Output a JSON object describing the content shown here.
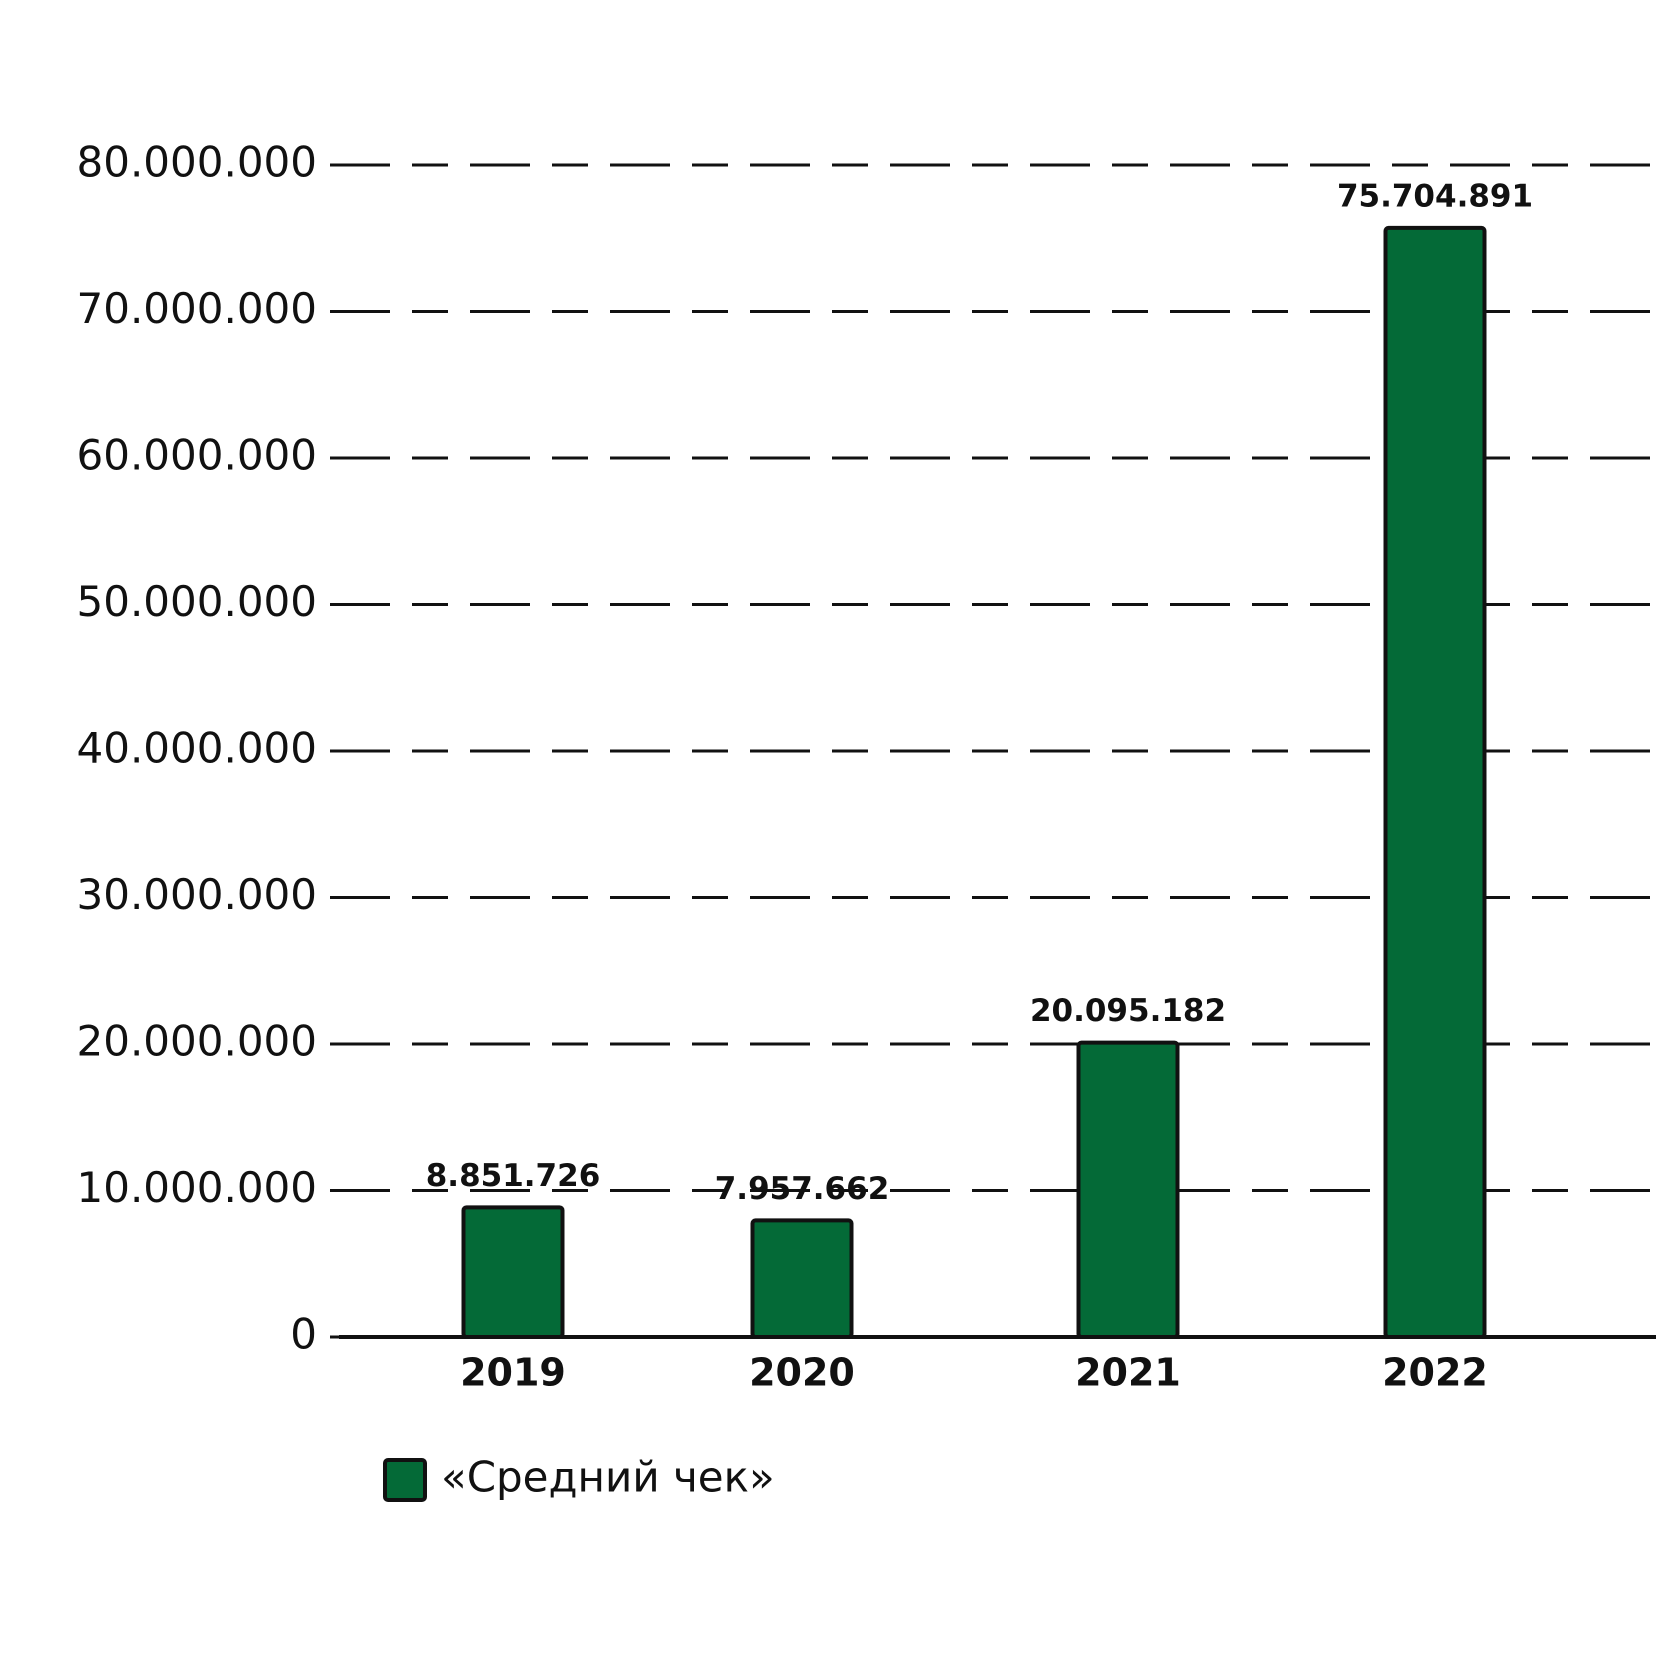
{
  "chart_data": {
    "type": "bar",
    "categories": [
      "2019",
      "2020",
      "2021",
      "2022"
    ],
    "series": [
      {
        "name": "«Средний чек»",
        "color": "#046a37",
        "values": [
          8851726,
          7957662,
          20095182,
          75704891
        ],
        "value_labels": [
          "8.851.726",
          "7.957.662",
          "20.095.182",
          "75.704.891"
        ]
      }
    ],
    "ylim": [
      0,
      80000000
    ],
    "yticks": [
      0,
      {
        "value": 10000000,
        "label": "10.000.000"
      },
      {
        "value": 20000000,
        "label": "20.000.000"
      },
      {
        "value": 30000000,
        "label": "30.000.000"
      },
      {
        "value": 40000000,
        "label": "40.000.000"
      },
      {
        "value": 50000000,
        "label": "50.000.000"
      },
      {
        "value": 60000000,
        "label": "60.000.000"
      },
      {
        "value": 70000000,
        "label": "70.000.000"
      },
      {
        "value": 80000000,
        "label": "80.000.000"
      }
    ],
    "grid": true
  }
}
